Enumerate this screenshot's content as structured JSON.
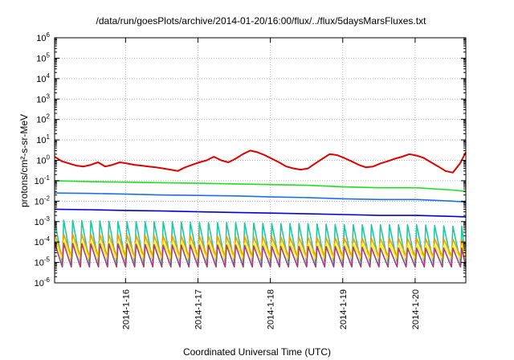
{
  "chart_data": {
    "type": "line",
    "title": "/data/run/goesPlots/archive/2014-01-20/16:00/flux/../flux/5daysMarsFluxes.txt",
    "xlabel": "Coordinated Universal Time (UTC)",
    "ylabel": "protons/cm²-s-sr-MeV",
    "yscale": "log",
    "ylim": [
      1e-06,
      1000000.0
    ],
    "xlim": [
      0,
      5.68
    ],
    "grid": true,
    "legend": "none",
    "y_ticks": [
      {
        "exp": -6,
        "base": "10",
        "sup": "-6"
      },
      {
        "exp": -5,
        "base": "10",
        "sup": "-5"
      },
      {
        "exp": -4,
        "base": "10",
        "sup": "-4"
      },
      {
        "exp": -3,
        "base": "10",
        "sup": "-3"
      },
      {
        "exp": -2,
        "base": "10",
        "sup": "-2"
      },
      {
        "exp": -1,
        "base": "10",
        "sup": "-1"
      },
      {
        "exp": 0,
        "base": "10",
        "sup": "0"
      },
      {
        "exp": 1,
        "base": "10",
        "sup": "1"
      },
      {
        "exp": 2,
        "base": "10",
        "sup": "2"
      },
      {
        "exp": 3,
        "base": "10",
        "sup": "3"
      },
      {
        "exp": 4,
        "base": "10",
        "sup": "4"
      },
      {
        "exp": 5,
        "base": "10",
        "sup": "5"
      },
      {
        "exp": 6,
        "base": "10",
        "sup": "6"
      }
    ],
    "x_ticks": [
      {
        "label": "2014-1-16",
        "t": 0.98
      },
      {
        "label": "2014-1-17",
        "t": 1.98
      },
      {
        "label": "2014-1-18",
        "t": 2.98
      },
      {
        "label": "2014-1-19",
        "t": 3.98
      },
      {
        "label": "2014-1-20",
        "t": 4.98
      }
    ],
    "series": [
      {
        "color": "#dd0000",
        "x": [
          0,
          0.1,
          0.2,
          0.3,
          0.4,
          0.5,
          0.6,
          0.7,
          0.8,
          0.9,
          1.0,
          1.1,
          1.2,
          1.3,
          1.4,
          1.5,
          1.6,
          1.7,
          1.8,
          1.9,
          2.0,
          2.1,
          2.2,
          2.3,
          2.4,
          2.5,
          2.6,
          2.7,
          2.8,
          2.9,
          3.0,
          3.1,
          3.2,
          3.3,
          3.4,
          3.5,
          3.6,
          3.7,
          3.8,
          3.9,
          4.0,
          4.1,
          4.2,
          4.3,
          4.4,
          4.5,
          4.6,
          4.7,
          4.8,
          4.9,
          5.0,
          5.1,
          5.2,
          5.3,
          5.4,
          5.5,
          5.6,
          5.68
        ],
        "values": [
          1.5,
          0.9,
          0.7,
          0.55,
          0.5,
          0.6,
          0.8,
          0.5,
          0.6,
          0.8,
          0.7,
          0.6,
          0.55,
          0.5,
          0.45,
          0.4,
          0.35,
          0.3,
          0.45,
          0.6,
          0.8,
          1.0,
          1.5,
          1.0,
          0.8,
          1.2,
          2.0,
          3.0,
          2.5,
          1.8,
          1.2,
          0.8,
          0.5,
          0.4,
          0.35,
          0.4,
          0.7,
          1.2,
          2.0,
          1.8,
          1.3,
          0.9,
          0.6,
          0.45,
          0.5,
          0.7,
          0.9,
          1.2,
          1.5,
          2.0,
          1.7,
          1.3,
          0.8,
          0.5,
          0.3,
          0.25,
          0.7,
          2.5
        ]
      },
      {
        "color": "#22dd22",
        "x": [
          0,
          0.5,
          1.0,
          1.5,
          2.0,
          2.5,
          3.0,
          3.5,
          4.0,
          4.5,
          5.0,
          5.5,
          5.68
        ],
        "values": [
          0.1,
          0.09,
          0.085,
          0.08,
          0.075,
          0.07,
          0.065,
          0.06,
          0.05,
          0.045,
          0.045,
          0.035,
          0.03
        ]
      },
      {
        "color": "#1e6fe6",
        "x": [
          0,
          0.5,
          1.0,
          1.5,
          2.0,
          2.5,
          3.0,
          3.5,
          4.0,
          4.5,
          5.0,
          5.5,
          5.68
        ],
        "values": [
          0.025,
          0.024,
          0.022,
          0.02,
          0.019,
          0.018,
          0.016,
          0.015,
          0.013,
          0.012,
          0.012,
          0.01,
          0.009
        ]
      },
      {
        "color": "#0000dd",
        "x": [
          0,
          0.5,
          1.0,
          1.5,
          2.0,
          2.5,
          3.0,
          3.5,
          4.0,
          4.5,
          5.0,
          5.5,
          5.68
        ],
        "values": [
          0.004,
          0.0038,
          0.0035,
          0.0033,
          0.003,
          0.0028,
          0.0026,
          0.0024,
          0.0022,
          0.002,
          0.002,
          0.0018,
          0.0017
        ]
      },
      {
        "color": "#20c8a0",
        "x": [
          0,
          0.5,
          1.0,
          1.5,
          2.0,
          2.5,
          3.0,
          3.5,
          4.0,
          4.5,
          5.0,
          5.5,
          5.68
        ],
        "values": [
          0.0012,
          0.0011,
          0.001,
          0.001,
          0.0009,
          0.0009,
          0.0008,
          0.0008,
          0.0007,
          0.0007,
          0.0007,
          0.0006,
          0.0006
        ]
      },
      {
        "color": "#e8a200",
        "x": [
          0,
          0.5,
          1.0,
          1.5,
          2.0,
          2.5,
          3.0,
          3.5,
          4.0,
          4.5,
          5.0,
          5.5,
          5.68
        ],
        "values": [
          0.00025,
          0.00024,
          0.00022,
          0.0002,
          0.0002,
          0.00019,
          0.00018,
          0.00017,
          0.00016,
          0.00015,
          0.00015,
          0.00014,
          0.00013
        ]
      },
      {
        "color": "#ffee00",
        "x": [
          0,
          0.5,
          1.0,
          1.5,
          2.0,
          2.5,
          3.0,
          3.5,
          4.0,
          4.5,
          5.0,
          5.5,
          5.68
        ],
        "values": [
          0.00012,
          0.00011,
          0.0001,
          0.0001,
          0.0001,
          9e-05,
          9e-05,
          8e-05,
          8e-05,
          8e-05,
          7e-05,
          7e-05,
          7e-05
        ]
      },
      {
        "color": "#a0407a",
        "x": [
          0,
          0.5,
          1.0,
          1.5,
          2.0,
          2.5,
          3.0,
          3.5,
          4.0,
          4.5,
          5.0,
          5.5,
          5.68
        ],
        "values": [
          9e-05,
          8e-05,
          8e-05,
          7e-05,
          7e-05,
          7e-05,
          6e-05,
          6e-05,
          6e-05,
          5e-05,
          5e-05,
          5e-05,
          5e-05
        ]
      }
    ],
    "sawtooth_floor": [
      {
        "series": 4,
        "values": [
          1e-05,
          1e-05,
          1e-05,
          1e-05,
          1e-05,
          1e-05,
          1e-05,
          1e-05,
          1e-05,
          1e-05,
          1e-05,
          1e-05,
          1e-05
        ]
      },
      {
        "series": 5,
        "values": [
          2e-05,
          2e-05,
          2e-05,
          2e-05,
          2e-05,
          2e-05,
          2e-05,
          2e-05,
          2e-05,
          2e-05,
          2e-05,
          2e-05,
          2e-05
        ]
      },
      {
        "series": 6,
        "values": [
          1.5e-05,
          1.5e-05,
          1.5e-05,
          1.5e-05,
          1.5e-05,
          1.5e-05,
          1.5e-05,
          1.5e-05,
          1.5e-05,
          1.5e-05,
          1.5e-05,
          1.5e-05,
          1.5e-05
        ]
      },
      {
        "series": 7,
        "values": [
          6e-06,
          6e-06,
          6e-06,
          6e-06,
          6e-06,
          6e-06,
          6e-06,
          6e-06,
          6e-06,
          6e-06,
          6e-06,
          6e-06,
          6e-06
        ]
      }
    ]
  }
}
